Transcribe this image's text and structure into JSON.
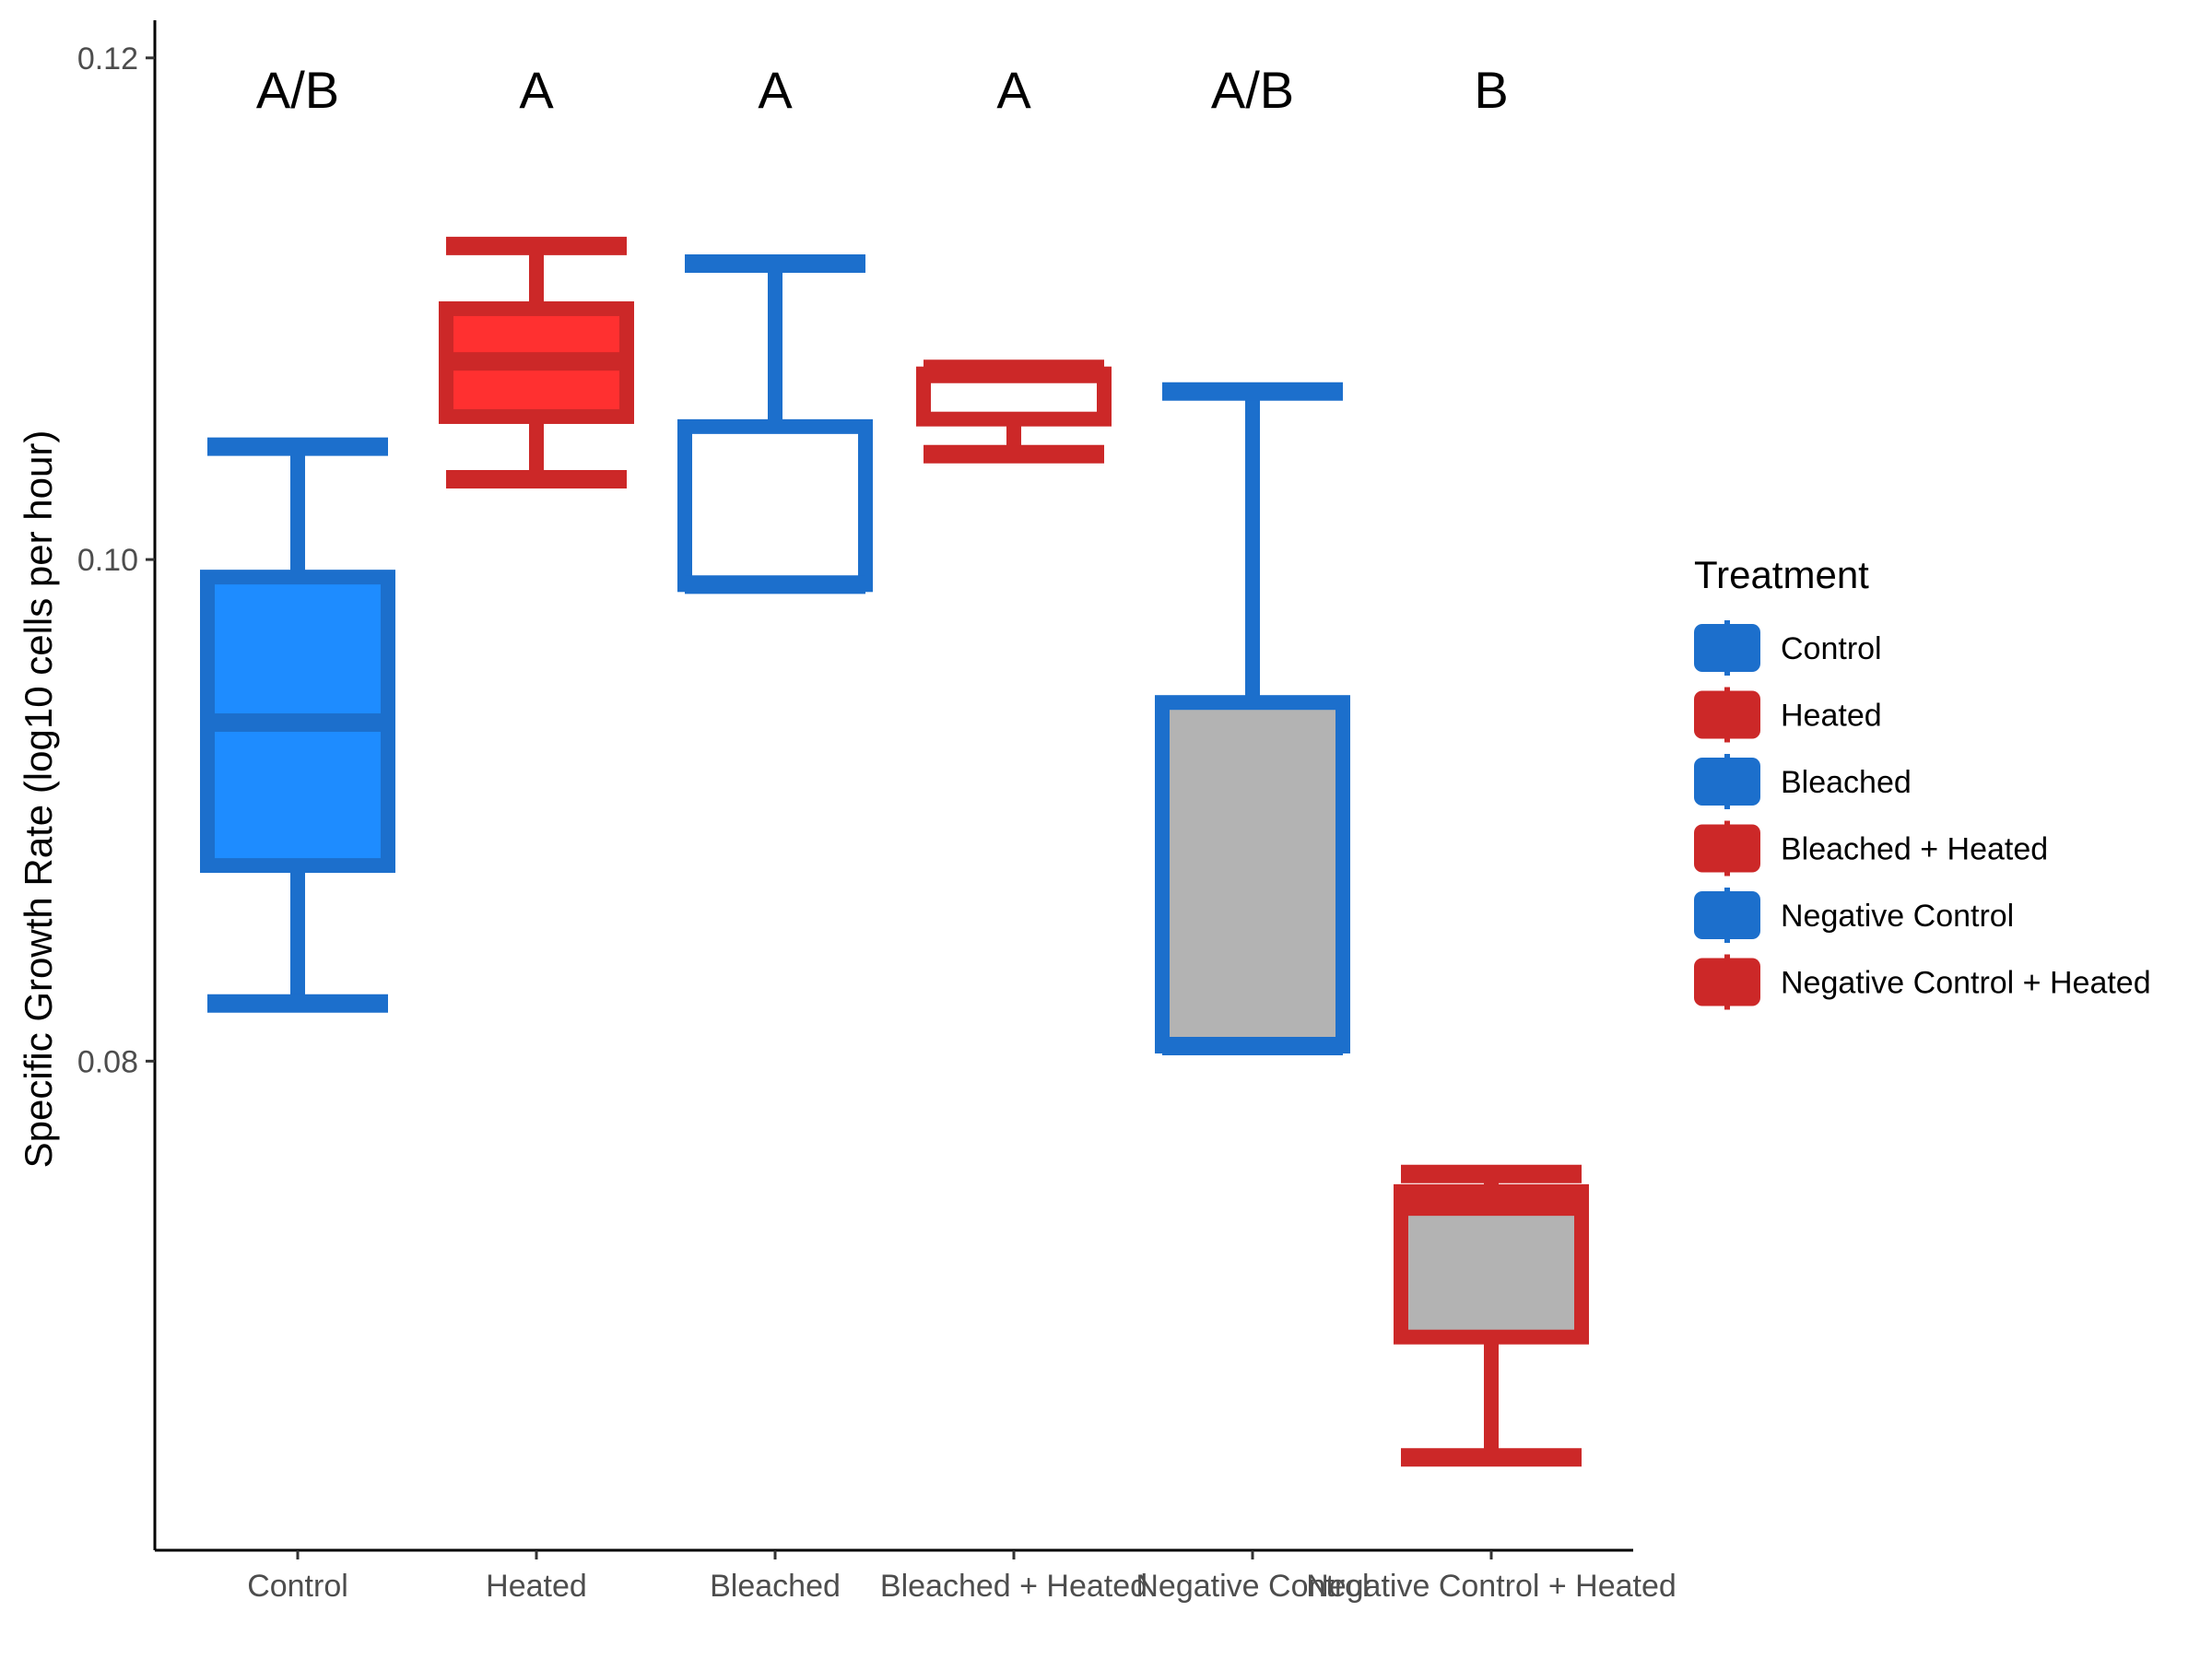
{
  "chart_data": {
    "type": "box",
    "xlabel": "",
    "ylabel": "Specific Growth Rate (log10 cells per hour)",
    "ylim": [
      0.0605,
      0.1215
    ],
    "yticks": [
      0.08,
      0.1,
      0.12
    ],
    "ytick_labels": [
      "0.08",
      "0.10",
      "0.12"
    ],
    "grid": false,
    "legend_position": "right",
    "legend_title": "Treatment",
    "categories": [
      "Control",
      "Heated",
      "Bleached",
      "Bleached + Heated",
      "Negative Control",
      "Negative Control + Heated"
    ],
    "significance_labels": [
      "A/B",
      "A",
      "A",
      "A",
      "A/B",
      "B"
    ],
    "boxes": [
      {
        "name": "Control",
        "min": 0.0823,
        "q1": 0.0878,
        "median": 0.0935,
        "q3": 0.0993,
        "max": 0.1045,
        "outline": "#1c6fcc",
        "fill": "#1e8cff"
      },
      {
        "name": "Heated",
        "min": 0.1032,
        "q1": 0.1057,
        "median": 0.1079,
        "q3": 0.11,
        "max": 0.1125,
        "outline": "#cc2828",
        "fill": "#ff3030"
      },
      {
        "name": "Bleached",
        "min": 0.099,
        "q1": 0.099,
        "median": 0.099,
        "q3": 0.1053,
        "max": 0.1118,
        "outline": "#1c6fcc",
        "fill": "#ffffff"
      },
      {
        "name": "Bleached + Heated",
        "min": 0.1042,
        "q1": 0.1056,
        "median": 0.1074,
        "q3": 0.1074,
        "max": 0.1076,
        "outline": "#cc2828",
        "fill": "#ffffff"
      },
      {
        "name": "Negative Control",
        "min": 0.0806,
        "q1": 0.0806,
        "median": 0.0806,
        "q3": 0.0943,
        "max": 0.1067,
        "outline": "#1c6fcc",
        "fill": "#b3b3b3"
      },
      {
        "name": "Negative Control + Heated",
        "min": 0.0642,
        "q1": 0.069,
        "median": 0.0742,
        "q3": 0.0748,
        "max": 0.0755,
        "outline": "#cc2828",
        "fill": "#b3b3b3"
      }
    ],
    "legend": [
      {
        "label": "Control",
        "color": "#1c6fcc"
      },
      {
        "label": "Heated",
        "color": "#cc2828"
      },
      {
        "label": "Bleached",
        "color": "#1c6fcc"
      },
      {
        "label": "Bleached + Heated",
        "color": "#cc2828"
      },
      {
        "label": "Negative Control",
        "color": "#1c6fcc"
      },
      {
        "label": "Negative Control + Heated",
        "color": "#cc2828"
      }
    ]
  }
}
